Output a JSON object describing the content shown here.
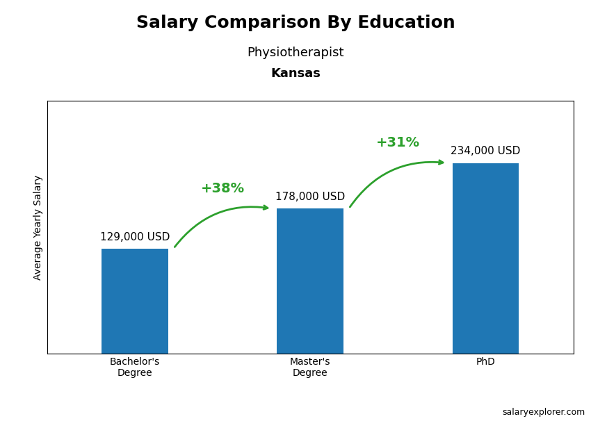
{
  "chart_data": {
    "type": "bar",
    "title": "Salary Comparison By Education",
    "subtitle": "Physiotherapist",
    "location": "Kansas",
    "source": "salaryexplorer.com",
    "y_label": "Average Yearly Salary",
    "categories": [
      "Bachelor's\nDegree",
      "Master's\nDegree",
      "PhD"
    ],
    "values": [
      129000,
      178000,
      234000
    ],
    "value_labels": [
      "129,000 USD",
      "178,000 USD",
      "234,000 USD"
    ],
    "data_labels": true,
    "change_labels": [
      "+38%",
      "+31%"
    ],
    "ylim": [
      0,
      310000
    ],
    "yticks": [],
    "tick_labels": "x",
    "grid": false
  }
}
